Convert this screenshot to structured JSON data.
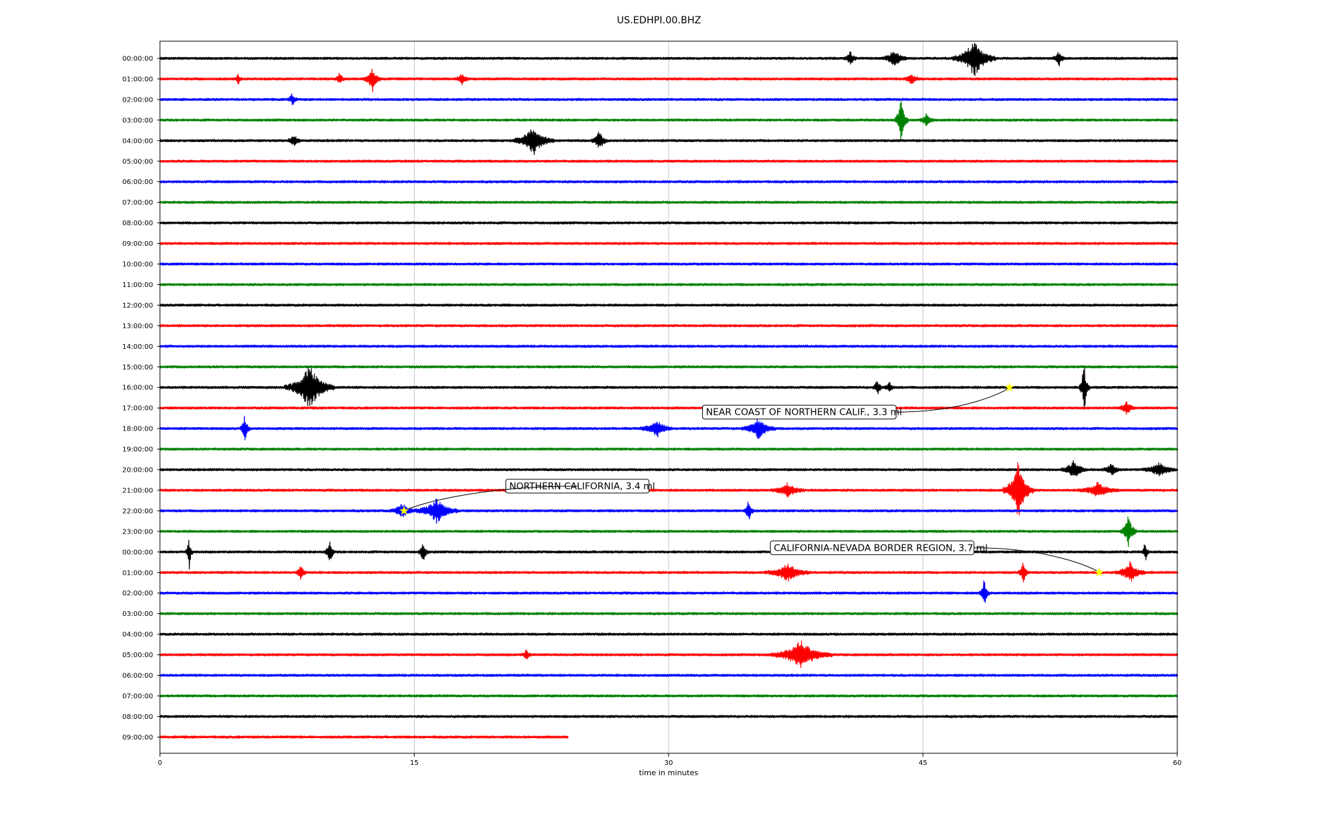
{
  "chart_data": {
    "type": "line",
    "title": "US.EDHPI.00.BHZ",
    "xlabel": "time in minutes",
    "xlim": [
      0,
      60
    ],
    "xticks": [
      0,
      15,
      30,
      45,
      60
    ],
    "grid": "vertical",
    "row_labels": [
      "00:00:00",
      "01:00:00",
      "02:00:00",
      "03:00:00",
      "04:00:00",
      "05:00:00",
      "06:00:00",
      "07:00:00",
      "08:00:00",
      "09:00:00",
      "10:00:00",
      "11:00:00",
      "12:00:00",
      "13:00:00",
      "14:00:00",
      "15:00:00",
      "16:00:00",
      "17:00:00",
      "18:00:00",
      "19:00:00",
      "20:00:00",
      "21:00:00",
      "22:00:00",
      "23:00:00",
      "00:00:00",
      "01:00:00",
      "02:00:00",
      "03:00:00",
      "04:00:00",
      "05:00:00",
      "06:00:00",
      "07:00:00",
      "08:00:00",
      "09:00:00"
    ],
    "row_colors": [
      "#000000",
      "#ff0000",
      "#0000ff",
      "#008000"
    ],
    "last_row_end_minute": 24.1,
    "bursts": [
      {
        "row": 0,
        "minute": 40.7,
        "amp": 0.35,
        "dur": 0.4
      },
      {
        "row": 0,
        "minute": 43.3,
        "amp": 0.45,
        "dur": 0.7
      },
      {
        "row": 0,
        "minute": 48.0,
        "amp": 0.9,
        "dur": 1.3
      },
      {
        "row": 0,
        "minute": 53.0,
        "amp": 0.35,
        "dur": 0.4
      },
      {
        "row": 1,
        "minute": 4.6,
        "amp": 0.3,
        "dur": 0.2
      },
      {
        "row": 1,
        "minute": 10.6,
        "amp": 0.3,
        "dur": 0.3
      },
      {
        "row": 1,
        "minute": 12.5,
        "amp": 0.6,
        "dur": 0.5
      },
      {
        "row": 1,
        "minute": 17.8,
        "amp": 0.25,
        "dur": 0.4
      },
      {
        "row": 1,
        "minute": 44.3,
        "amp": 0.35,
        "dur": 0.4
      },
      {
        "row": 2,
        "minute": 7.8,
        "amp": 0.3,
        "dur": 0.3
      },
      {
        "row": 3,
        "minute": 43.7,
        "amp": 1.2,
        "dur": 0.4
      },
      {
        "row": 3,
        "minute": 45.2,
        "amp": 0.35,
        "dur": 0.4
      },
      {
        "row": 4,
        "minute": 7.9,
        "amp": 0.3,
        "dur": 0.4
      },
      {
        "row": 4,
        "minute": 22.0,
        "amp": 0.7,
        "dur": 1.2
      },
      {
        "row": 4,
        "minute": 25.9,
        "amp": 0.45,
        "dur": 0.5
      },
      {
        "row": 16,
        "minute": 8.8,
        "amp": 1.1,
        "dur": 1.5
      },
      {
        "row": 16,
        "minute": 42.3,
        "amp": 0.4,
        "dur": 0.3
      },
      {
        "row": 16,
        "minute": 43.0,
        "amp": 0.3,
        "dur": 0.3
      },
      {
        "row": 16,
        "minute": 54.5,
        "amp": 1.3,
        "dur": 0.3
      },
      {
        "row": 17,
        "minute": 57.0,
        "amp": 0.35,
        "dur": 0.5
      },
      {
        "row": 18,
        "minute": 5.0,
        "amp": 0.7,
        "dur": 0.3
      },
      {
        "row": 18,
        "minute": 29.3,
        "amp": 0.4,
        "dur": 1.0
      },
      {
        "row": 18,
        "minute": 35.3,
        "amp": 0.55,
        "dur": 1.0
      },
      {
        "row": 20,
        "minute": 53.9,
        "amp": 0.45,
        "dur": 0.8
      },
      {
        "row": 20,
        "minute": 56.1,
        "amp": 0.3,
        "dur": 0.6
      },
      {
        "row": 20,
        "minute": 58.9,
        "amp": 0.35,
        "dur": 1.0
      },
      {
        "row": 21,
        "minute": 37.0,
        "amp": 0.35,
        "dur": 1.0
      },
      {
        "row": 21,
        "minute": 50.6,
        "amp": 1.4,
        "dur": 0.9
      },
      {
        "row": 21,
        "minute": 55.3,
        "amp": 0.35,
        "dur": 1.2
      },
      {
        "row": 22,
        "minute": 14.3,
        "amp": 0.35,
        "dur": 0.8
      },
      {
        "row": 22,
        "minute": 16.3,
        "amp": 0.6,
        "dur": 1.3
      },
      {
        "row": 22,
        "minute": 34.7,
        "amp": 0.6,
        "dur": 0.3
      },
      {
        "row": 23,
        "minute": 57.1,
        "amp": 0.8,
        "dur": 0.5
      },
      {
        "row": 24,
        "minute": 1.7,
        "amp": 0.8,
        "dur": 0.2
      },
      {
        "row": 24,
        "minute": 10.0,
        "amp": 0.6,
        "dur": 0.3
      },
      {
        "row": 24,
        "minute": 15.5,
        "amp": 0.55,
        "dur": 0.3
      },
      {
        "row": 24,
        "minute": 58.1,
        "amp": 0.55,
        "dur": 0.2
      },
      {
        "row": 25,
        "minute": 8.3,
        "amp": 0.45,
        "dur": 0.3
      },
      {
        "row": 25,
        "minute": 37.0,
        "amp": 0.45,
        "dur": 1.3
      },
      {
        "row": 25,
        "minute": 50.9,
        "amp": 0.55,
        "dur": 0.3
      },
      {
        "row": 25,
        "minute": 57.2,
        "amp": 0.5,
        "dur": 0.9
      },
      {
        "row": 26,
        "minute": 48.6,
        "amp": 0.75,
        "dur": 0.3
      },
      {
        "row": 29,
        "minute": 21.6,
        "amp": 0.25,
        "dur": 0.3
      },
      {
        "row": 29,
        "minute": 37.8,
        "amp": 0.7,
        "dur": 1.8
      }
    ],
    "annotations": [
      {
        "text": "NEAR COAST OF NORTHERN CALIF., 3.3 ml",
        "row": 16,
        "minute": 50.1,
        "label_row": 17.2,
        "label_minute": 32.0
      },
      {
        "text": "NORTHERN CALIFORNIA, 3.4 ml",
        "row": 22,
        "minute": 14.4,
        "label_row": 20.8,
        "label_minute": 20.4
      },
      {
        "text": "CALIFORNIA-NEVADA BORDER REGION, 3.7 ml",
        "row": 25,
        "minute": 55.4,
        "label_row": 23.8,
        "label_minute": 36.0
      }
    ],
    "event_marker_color": "#ffff00"
  }
}
